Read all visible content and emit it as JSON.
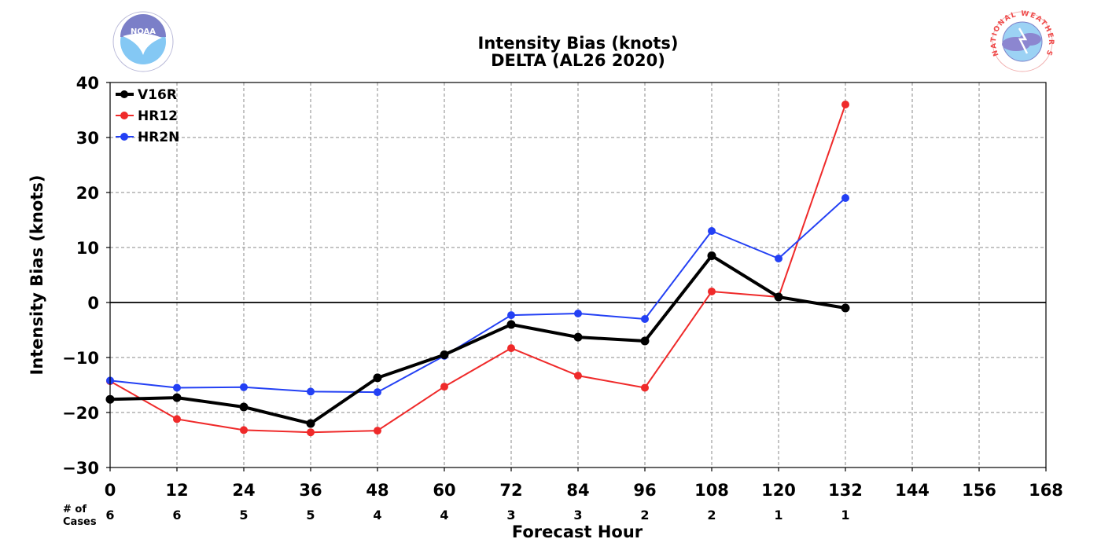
{
  "logos": {
    "left": {
      "name": "NOAA",
      "text": "NOAA"
    },
    "right": {
      "name": "National Weather Service",
      "text": "NATIONAL WEATHER SERVICE"
    }
  },
  "colors": {
    "V16R": "#000000",
    "HR12": "#ef2a2a",
    "HR2N": "#2340f4",
    "grid": "#888888"
  },
  "chart_data": {
    "type": "line",
    "title": "Intensity Bias (knots)",
    "subtitle": "DELTA (AL26 2020)",
    "xlabel": "Forecast Hour",
    "ylabel": "Intensity Bias (knots)",
    "xlim": [
      0,
      168
    ],
    "ylim": [
      -30,
      40
    ],
    "x_ticks": [
      0,
      12,
      24,
      36,
      48,
      60,
      72,
      84,
      96,
      108,
      120,
      132,
      144,
      156,
      168
    ],
    "x_tick_labels": [
      "0",
      "12",
      "24",
      "36",
      "48",
      "60",
      "72",
      "84",
      "96",
      "108",
      "120",
      "132",
      "144",
      "156",
      "168"
    ],
    "y_ticks": [
      40,
      30,
      20,
      10,
      0,
      -10,
      -20,
      -30
    ],
    "y_tick_labels": [
      "40",
      "30",
      "20",
      "10",
      "0",
      "−10",
      "−20",
      "−30"
    ],
    "grid": true,
    "zero_line": true,
    "legend_position": "top-left",
    "cases_label": "# of\nCases",
    "cases": [
      {
        "x": 0,
        "label": "6"
      },
      {
        "x": 12,
        "label": "6"
      },
      {
        "x": 24,
        "label": "5"
      },
      {
        "x": 36,
        "label": "5"
      },
      {
        "x": 48,
        "label": "4"
      },
      {
        "x": 60,
        "label": "4"
      },
      {
        "x": 72,
        "label": "3"
      },
      {
        "x": 84,
        "label": "3"
      },
      {
        "x": 96,
        "label": "2"
      },
      {
        "x": 108,
        "label": "2"
      },
      {
        "x": 120,
        "label": "1"
      },
      {
        "x": 132,
        "label": "1"
      }
    ],
    "series": [
      {
        "name": "V16R",
        "color": "#000000",
        "bold": true,
        "x": [
          0,
          12,
          24,
          36,
          48,
          60,
          72,
          84,
          96,
          108,
          120,
          132
        ],
        "values": [
          -17.6,
          -17.3,
          -19.0,
          -22.0,
          -13.7,
          -9.5,
          -4.0,
          -6.3,
          -7.0,
          8.5,
          1.0,
          -1.0
        ]
      },
      {
        "name": "HR12",
        "color": "#ef2a2a",
        "bold": false,
        "x": [
          0,
          12,
          24,
          36,
          48,
          60,
          72,
          84,
          96,
          108,
          120,
          132
        ],
        "values": [
          -14.3,
          -21.2,
          -23.2,
          -23.6,
          -23.3,
          -15.3,
          -8.3,
          -13.3,
          -15.5,
          2.0,
          1.0,
          36.0
        ]
      },
      {
        "name": "HR2N",
        "color": "#2340f4",
        "bold": false,
        "x": [
          0,
          12,
          24,
          36,
          48,
          60,
          72,
          84,
          96,
          108,
          120,
          132
        ],
        "values": [
          -14.2,
          -15.5,
          -15.4,
          -16.2,
          -16.3,
          -9.7,
          -2.3,
          -2.0,
          -3.0,
          13.0,
          8.0,
          19.0
        ]
      }
    ]
  }
}
